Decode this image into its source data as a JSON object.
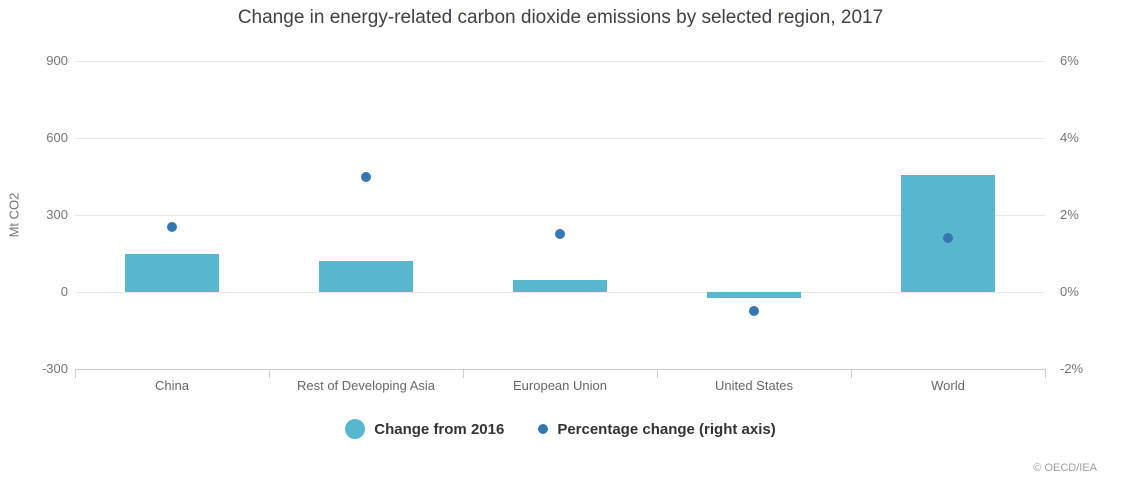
{
  "chart_data": {
    "type": "bar",
    "title": "Change in energy-related carbon dioxide emissions by selected region, 2017",
    "categories": [
      "China",
      "Rest of Developing Asia",
      "European Union",
      "United States",
      "World"
    ],
    "series": [
      {
        "name": "Change from 2016",
        "type": "bar",
        "axis": "left",
        "values": [
          150,
          120,
          45,
          -25,
          455
        ]
      },
      {
        "name": "Percentage change (right axis)",
        "type": "scatter",
        "axis": "right",
        "values": [
          1.7,
          3.0,
          1.5,
          -0.5,
          1.4
        ]
      }
    ],
    "left_axis": {
      "label": "Mt CO2",
      "ticks": [
        900,
        600,
        300,
        0,
        -300
      ],
      "min": -300,
      "max": 900
    },
    "right_axis": {
      "tick_labels": [
        "6%",
        "4%",
        "2%",
        "0%",
        "-2%"
      ],
      "tick_values": [
        6,
        4,
        2,
        0,
        -2
      ],
      "min": -2,
      "max": 6
    },
    "grid": true,
    "legend_position": "bottom",
    "colors": {
      "bar": "#58b7ce",
      "dot": "#3578af",
      "gridline": "#e7e7e7",
      "axis_line": "#cccccc"
    }
  },
  "footer": {
    "copyright": "© OECD/IEA"
  }
}
